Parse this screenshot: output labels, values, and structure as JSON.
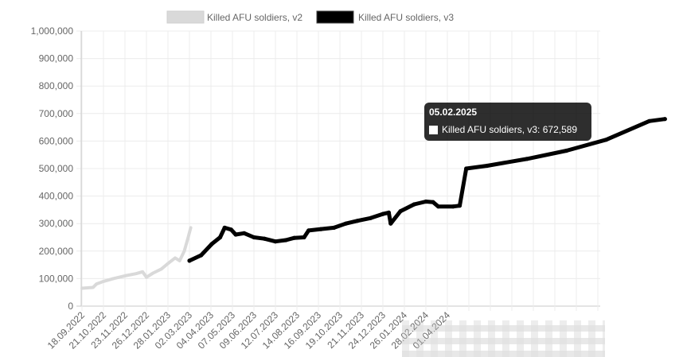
{
  "chart_data": {
    "type": "line",
    "title": "",
    "xlabel": "",
    "ylabel": "",
    "ylim": [
      0,
      1000000
    ],
    "ytick_labels": [
      "0",
      "100,000",
      "200,000",
      "300,000",
      "400,000",
      "500,000",
      "600,000",
      "700,000",
      "800,000",
      "900,000",
      "1,000,000"
    ],
    "xtick_labels": [
      "18.09.2022",
      "21.10.2022",
      "23.11.2022",
      "26.12.2022",
      "28.01.2023",
      "02.03.2023",
      "04.04.2023",
      "07.05.2023",
      "09.06.2023",
      "12.07.2023",
      "14.08.2023",
      "16.09.2023",
      "19.10.2023",
      "21.11.2023",
      "24.12.2023",
      "26.01.2024",
      "28.02.2024",
      "01.04.2024"
    ],
    "grid": true,
    "legend_position": "top",
    "series": [
      {
        "name": "Killed AFU soldiers, v2",
        "color": "#d9d9d9",
        "points": [
          [
            "18.09.2022",
            65000
          ],
          [
            "05.10.2022",
            68000
          ],
          [
            "10.10.2022",
            80000
          ],
          [
            "21.10.2022",
            90000
          ],
          [
            "05.11.2022",
            100000
          ],
          [
            "23.11.2022",
            110000
          ],
          [
            "10.12.2022",
            118000
          ],
          [
            "20.12.2022",
            125000
          ],
          [
            "26.12.2022",
            105000
          ],
          [
            "05.01.2023",
            120000
          ],
          [
            "18.01.2023",
            135000
          ],
          [
            "28.01.2023",
            155000
          ],
          [
            "08.02.2023",
            175000
          ],
          [
            "15.02.2023",
            165000
          ],
          [
            "22.02.2023",
            200000
          ],
          [
            "28.02.2023",
            250000
          ],
          [
            "04.03.2023",
            285000
          ]
        ]
      },
      {
        "name": "Killed AFU soldiers, v3",
        "color": "#000000",
        "points": [
          [
            "02.03.2023",
            165000
          ],
          [
            "20.03.2023",
            185000
          ],
          [
            "05.04.2023",
            225000
          ],
          [
            "18.04.2023",
            250000
          ],
          [
            "25.04.2023",
            285000
          ],
          [
            "05.05.2023",
            278000
          ],
          [
            "12.05.2023",
            260000
          ],
          [
            "25.05.2023",
            265000
          ],
          [
            "09.06.2023",
            250000
          ],
          [
            "25.06.2023",
            245000
          ],
          [
            "12.07.2023",
            235000
          ],
          [
            "28.07.2023",
            240000
          ],
          [
            "10.08.2023",
            248000
          ],
          [
            "25.08.2023",
            250000
          ],
          [
            "01.09.2023",
            275000
          ],
          [
            "20.09.2023",
            280000
          ],
          [
            "10.10.2023",
            285000
          ],
          [
            "28.10.2023",
            300000
          ],
          [
            "15.11.2023",
            310000
          ],
          [
            "05.12.2023",
            320000
          ],
          [
            "24.12.2023",
            335000
          ],
          [
            "02.01.2024",
            340000
          ],
          [
            "05.01.2024",
            300000
          ],
          [
            "20.01.2024",
            345000
          ],
          [
            "10.02.2024",
            370000
          ],
          [
            "28.02.2024",
            380000
          ],
          [
            "10.03.2024",
            378000
          ],
          [
            "18.03.2024",
            362000
          ],
          [
            "10.04.2024",
            362000
          ],
          [
            "20.04.2024",
            365000
          ],
          [
            "30.04.2024",
            500000
          ],
          [
            "01.06.2024",
            510000
          ],
          [
            "01.08.2024",
            535000
          ],
          [
            "01.10.2024",
            565000
          ],
          [
            "01.12.2024",
            605000
          ],
          [
            "05.02.2025",
            672589
          ],
          [
            "01.03.2025",
            680000
          ]
        ]
      }
    ],
    "tooltip": {
      "title": "05.02.2025",
      "label": "Killed AFU soldiers, v3: 672,589"
    }
  }
}
